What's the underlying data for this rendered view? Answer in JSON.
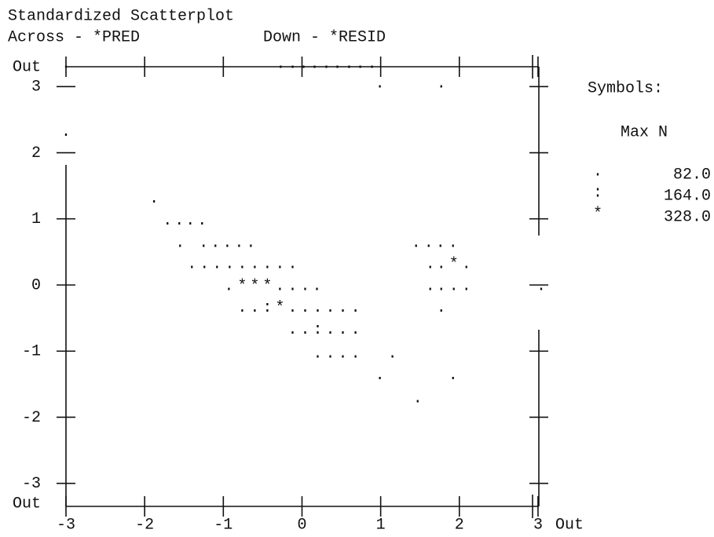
{
  "chart_data": {
    "type": "scatter",
    "title": "Standardized Scatterplot",
    "x_label": "Across - *PRED",
    "y_label": "Down - *RESID",
    "xlim": [
      -3,
      3.32
    ],
    "ylim": [
      -3.3,
      3.3
    ],
    "xticks": [
      -3,
      -2,
      -1,
      0,
      1,
      2,
      3,
      {
        "value": 3.32,
        "label": "Out"
      }
    ],
    "yticks": [
      {
        "value": -3.3,
        "label": "Out"
      },
      -3,
      -2,
      -1,
      0,
      1,
      2,
      3,
      {
        "value": 3.3,
        "label": "Out"
      }
    ],
    "legend": {
      "title": "Symbols:",
      "header": "Max N",
      "values": [
        82,
        164,
        328
      ],
      "value_labels": [
        "82.0",
        "164.0",
        "328.0"
      ]
    },
    "series": [
      {
        "name": ".",
        "x": [
          -3.0,
          -0.27,
          -0.12,
          0.02,
          0.16,
          0.31,
          0.45,
          0.6,
          0.74,
          0.89,
          0.99,
          1.77,
          -3.0,
          -1.88,
          -1.71,
          -1.56,
          -1.42,
          -1.27,
          -1.55,
          -1.25,
          -1.1,
          -0.95,
          -0.8,
          -0.65,
          1.45,
          1.61,
          1.76,
          1.92,
          -1.4,
          -1.24,
          -1.08,
          -0.92,
          -0.76,
          -0.6,
          -0.44,
          -0.28,
          -0.12,
          1.63,
          1.77,
          2.09,
          -0.93,
          -0.28,
          -0.12,
          0.04,
          0.19,
          1.63,
          1.77,
          1.93,
          2.09,
          3.04,
          -0.76,
          -0.6,
          -0.12,
          0.04,
          0.2,
          0.36,
          0.52,
          0.68,
          1.77,
          -0.12,
          0.04,
          0.36,
          0.52,
          0.68,
          0.2,
          0.36,
          0.52,
          0.68,
          1.15,
          0.99,
          1.92,
          1.47
        ],
        "y": [
          3.3,
          3.3,
          3.3,
          3.3,
          3.3,
          3.3,
          3.3,
          3.3,
          3.3,
          3.3,
          3.0,
          3.0,
          2.27,
          1.26,
          0.93,
          0.93,
          0.93,
          0.93,
          0.59,
          0.59,
          0.59,
          0.59,
          0.59,
          0.59,
          0.59,
          0.59,
          0.59,
          0.59,
          0.27,
          0.27,
          0.27,
          0.27,
          0.27,
          0.27,
          0.27,
          0.27,
          0.27,
          0.27,
          0.27,
          0.27,
          -0.06,
          -0.06,
          -0.06,
          -0.06,
          -0.06,
          -0.06,
          -0.06,
          -0.06,
          -0.06,
          -0.06,
          -0.39,
          -0.39,
          -0.39,
          -0.39,
          -0.39,
          -0.39,
          -0.39,
          -0.39,
          -0.39,
          -0.72,
          -0.72,
          -0.72,
          -0.72,
          -0.72,
          -1.08,
          -1.08,
          -1.08,
          -1.08,
          -1.08,
          -1.41,
          -1.41,
          -1.76
        ]
      },
      {
        "name": ":",
        "x": [
          -0.44,
          0.2
        ],
        "y": [
          -0.39,
          -0.72
        ]
      },
      {
        "name": "*",
        "x": [
          1.93,
          -0.76,
          -0.6,
          -0.44,
          -0.28
        ],
        "y": [
          0.27,
          -0.06,
          -0.06,
          -0.06,
          -0.39
        ]
      }
    ]
  }
}
